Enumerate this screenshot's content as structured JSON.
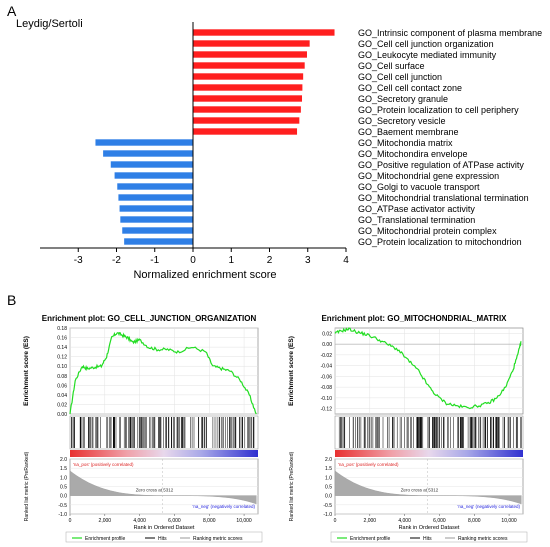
{
  "panel_a": {
    "letter": "A"
  },
  "panel_b": {
    "letter": "B"
  },
  "chart_data": [
    {
      "type": "bar",
      "orientation": "horizontal",
      "title": "Leydig/Sertoli",
      "xlabel": "Normalized enrichment score",
      "xlim": [
        -4,
        4
      ],
      "xticks": [
        -3,
        -2,
        -1,
        0,
        1,
        2,
        3,
        4
      ],
      "colors": {
        "positive": "#ff1f1f",
        "negative": "#2f7fe6"
      },
      "categories": [
        "GO_Intrinsic component of plasma membrane",
        "GO_Cell cell junction organization",
        "GO_Leukocyte mediated immunity",
        "GO_Cell surface",
        "GO_Cell cell junction",
        "GO_Cell cell contact zone",
        "GO_Secretory granule",
        "GO_Protein localization to cell periphery",
        "GO_Secretory vesicle",
        "GO_Baement membrane",
        "GO_Mitochondia matrix",
        "GO_Mitochondira envelope",
        "GO_Positive regulation of ATPase activity",
        "GO_Mitochondrial gene expression",
        "GO_Golgi to vacuole transport",
        "GO_Mitochondrial translational termination",
        "GO_ATPase activator activity",
        "GO_Translational termination",
        "GO_Mitochondrial protein complex",
        "GO_Protein localization to mitochondrion"
      ],
      "values": [
        3.7,
        3.05,
        2.98,
        2.92,
        2.88,
        2.86,
        2.85,
        2.82,
        2.78,
        2.72,
        -2.55,
        -2.35,
        -2.15,
        -2.05,
        -1.98,
        -1.95,
        -1.92,
        -1.9,
        -1.85,
        -1.8
      ]
    },
    {
      "type": "line",
      "title": "Enrichment plot: GO_CELL_JUNCTION_ORGANIZATION",
      "ylabel": "Enrichment score (ES)",
      "ylim": [
        0,
        0.18
      ],
      "yticks": [
        0.0,
        0.02,
        0.04,
        0.06,
        0.08,
        0.1,
        0.12,
        0.14,
        0.16,
        0.18
      ],
      "x": [
        0,
        300,
        700,
        1000,
        1400,
        1800,
        2100,
        2400,
        2700,
        3000,
        3300,
        3600,
        4000,
        4500,
        5000,
        5600,
        6200,
        7000,
        7800,
        8200,
        8700,
        9200,
        9800,
        10300,
        10700
      ],
      "values": [
        0.0,
        0.07,
        0.1,
        0.095,
        0.098,
        0.1,
        0.12,
        0.16,
        0.17,
        0.165,
        0.16,
        0.15,
        0.155,
        0.14,
        0.135,
        0.135,
        0.13,
        0.14,
        0.13,
        0.1,
        0.095,
        0.09,
        0.07,
        0.04,
        0.0
      ],
      "metric_ylabel": "Ranked list metric (PreRanked)",
      "metric_ylim": [
        -1.0,
        2.0
      ],
      "metric_yticks": [
        2.0,
        1.5,
        1.0,
        0.5,
        0.0,
        -0.5,
        -1.0
      ],
      "pos_label": "'na_pos' (positively correlated)",
      "neg_label": "'na_neg' (negatively correlated)",
      "zero_cross": "Zero cross at 5312",
      "xlabel": "Rank in Ordered Dataset",
      "xlim": [
        0,
        10800
      ],
      "xticks": [
        "0",
        "2,000",
        "4,000",
        "6,000",
        "8,000",
        "10,000"
      ],
      "legend": [
        "Enrichment profile",
        "Hits",
        "Ranking metric scores"
      ],
      "colors": {
        "profile": "#22dd22",
        "hits": "#000000",
        "metric": "#aaaaaa"
      }
    },
    {
      "type": "line",
      "title": "Enrichment plot: GO_MITOCHONDRIAL_MATRIX",
      "ylabel": "Enrichment score (ES)",
      "ylim": [
        -0.13,
        0.03
      ],
      "yticks": [
        0.02,
        0.0,
        -0.02,
        -0.04,
        -0.06,
        -0.08,
        -0.1,
        -0.12
      ],
      "x": [
        0,
        400,
        800,
        1300,
        1800,
        2400,
        3000,
        3600,
        4200,
        4800,
        5300,
        5800,
        6400,
        7000,
        7600,
        8200,
        8800,
        9300,
        9800,
        10200,
        10500,
        10700
      ],
      "values": [
        0.02,
        0.025,
        0.028,
        0.022,
        0.018,
        0.01,
        0.0,
        -0.01,
        -0.03,
        -0.05,
        -0.075,
        -0.095,
        -0.11,
        -0.115,
        -0.118,
        -0.115,
        -0.11,
        -0.1,
        -0.08,
        -0.05,
        -0.02,
        0.005
      ],
      "metric_ylabel": "Ranked list metric (PreRanked)",
      "metric_ylim": [
        -1.0,
        2.0
      ],
      "metric_yticks": [
        2.0,
        1.5,
        1.0,
        0.5,
        0.0,
        -0.5,
        -1.0
      ],
      "pos_label": "'na_pos' (positively correlated)",
      "neg_label": "'na_neg' (negatively correlated)",
      "zero_cross": "Zero cross at 5312",
      "xlabel": "Rank in Ordered Dataset",
      "xlim": [
        0,
        10800
      ],
      "xticks": [
        "0",
        "2,000",
        "4,000",
        "6,000",
        "8,000",
        "10,000"
      ],
      "legend": [
        "Enrichment profile",
        "Hits",
        "Ranking metric scores"
      ],
      "colors": {
        "profile": "#22dd22",
        "hits": "#000000",
        "metric": "#aaaaaa"
      }
    }
  ]
}
